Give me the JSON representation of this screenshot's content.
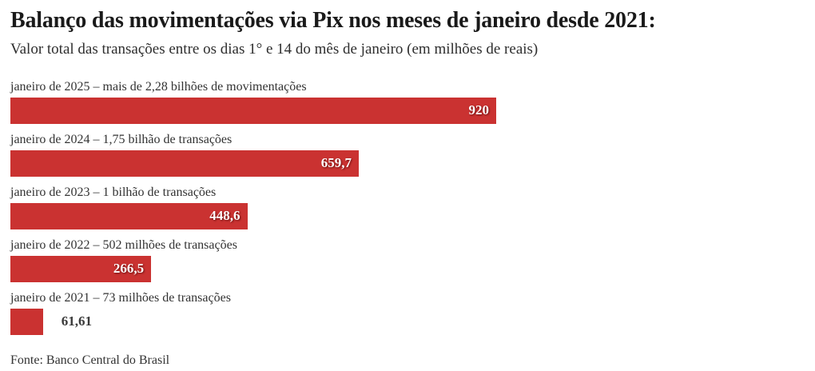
{
  "header": {
    "title": "Balanço das movimentações via Pix nos meses de janeiro desde 2021:",
    "subtitle": "Valor total das transações entre os dias 1° e 14 do mês de janeiro (em milhões de reais)"
  },
  "footer": {
    "source": "Fonte: Banco Central do Brasil"
  },
  "chart_data": {
    "type": "bar",
    "orientation": "horizontal",
    "title": "Balanço das movimentações via Pix nos meses de janeiro desde 2021:",
    "subtitle": "Valor total das transações entre os dias 1° e 14 do mês de janeiro (em milhões de reais)",
    "unit": "milhões de reais",
    "xlim": [
      0,
      920
    ],
    "grid": false,
    "legend": false,
    "bar_color": "#ca3231",
    "value_label_color_inside": "#ffffff",
    "value_label_color_outside": "#3a3a3a",
    "source": "Fonte: Banco Central do Brasil",
    "rows": [
      {
        "label": "janeiro de 2025 – mais de 2,28 bilhões de movimentações",
        "value": 920,
        "value_label": "920",
        "value_label_position": "inside"
      },
      {
        "label": "janeiro de 2024 – 1,75 bilhão de transações",
        "value": 659.7,
        "value_label": "659,7",
        "value_label_position": "inside"
      },
      {
        "label": "janeiro de 2023 – 1 bilhão de transações",
        "value": 448.6,
        "value_label": "448,6",
        "value_label_position": "inside"
      },
      {
        "label": "janeiro de 2022 – 502 milhões de transações",
        "value": 266.5,
        "value_label": "266,5",
        "value_label_position": "inside"
      },
      {
        "label": "janeiro de 2021 – 73 milhões de transações",
        "value": 61.61,
        "value_label": "61,61",
        "value_label_position": "outside"
      }
    ]
  }
}
